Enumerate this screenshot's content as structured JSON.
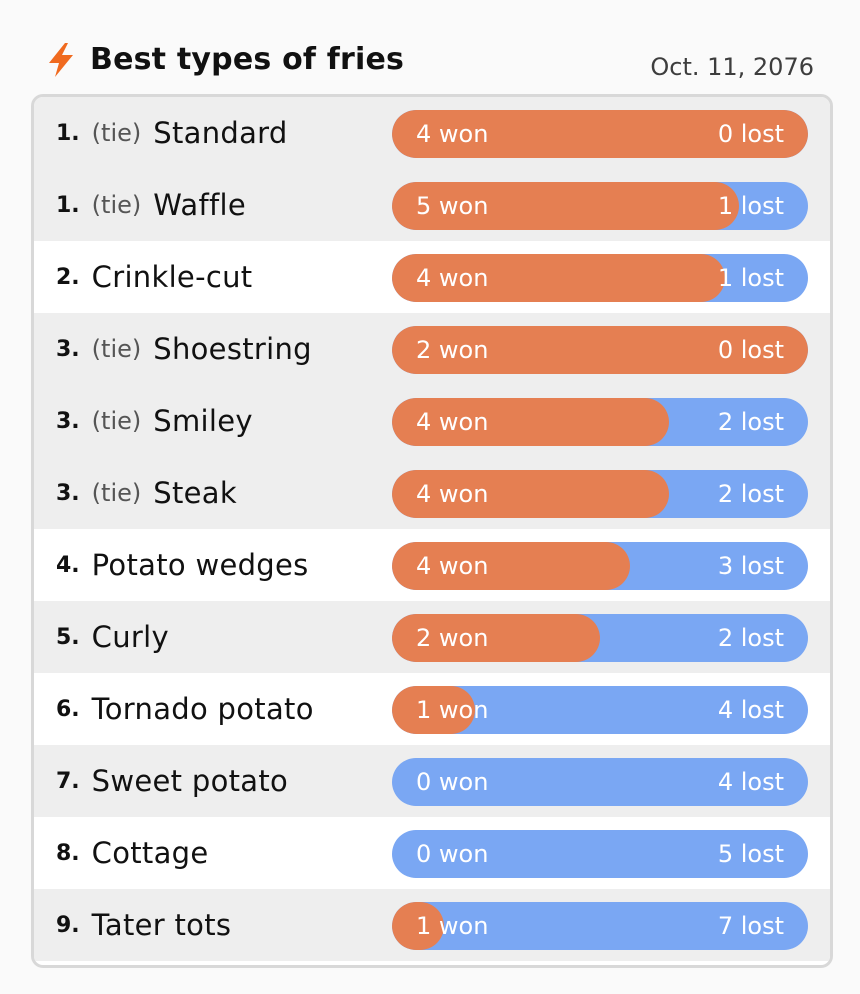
{
  "header": {
    "icon": "lightning-bolt-icon",
    "icon_color": "#f06a1f",
    "title": "Best types of fries",
    "date": "Oct. 11, 2076"
  },
  "colors": {
    "won": "#e57f52",
    "lost": "#7aa7f3",
    "row_shade": "#eeeeee",
    "row_plain": "#ffffff"
  },
  "rows": [
    {
      "rank": "1.",
      "tie": "(tie)",
      "name": "Standard",
      "won": 4,
      "lost": 0,
      "won_label": "4 won",
      "lost_label": "0 lost",
      "shaded": true
    },
    {
      "rank": "1.",
      "tie": "(tie)",
      "name": "Waffle",
      "won": 5,
      "lost": 1,
      "won_label": "5 won",
      "lost_label": "1 lost",
      "shaded": true
    },
    {
      "rank": "2.",
      "tie": "",
      "name": "Crinkle-cut",
      "won": 4,
      "lost": 1,
      "won_label": "4 won",
      "lost_label": "1 lost",
      "shaded": false
    },
    {
      "rank": "3.",
      "tie": "(tie)",
      "name": "Shoestring",
      "won": 2,
      "lost": 0,
      "won_label": "2 won",
      "lost_label": "0 lost",
      "shaded": true
    },
    {
      "rank": "3.",
      "tie": "(tie)",
      "name": "Smiley",
      "won": 4,
      "lost": 2,
      "won_label": "4 won",
      "lost_label": "2 lost",
      "shaded": true
    },
    {
      "rank": "3.",
      "tie": "(tie)",
      "name": "Steak",
      "won": 4,
      "lost": 2,
      "won_label": "4 won",
      "lost_label": "2 lost",
      "shaded": true
    },
    {
      "rank": "4.",
      "tie": "",
      "name": "Potato wedges",
      "won": 4,
      "lost": 3,
      "won_label": "4 won",
      "lost_label": "3 lost",
      "shaded": false
    },
    {
      "rank": "5.",
      "tie": "",
      "name": "Curly",
      "won": 2,
      "lost": 2,
      "won_label": "2 won",
      "lost_label": "2 lost",
      "shaded": true
    },
    {
      "rank": "6.",
      "tie": "",
      "name": "Tornado potato",
      "won": 1,
      "lost": 4,
      "won_label": "1 won",
      "lost_label": "4 lost",
      "shaded": false
    },
    {
      "rank": "7.",
      "tie": "",
      "name": "Sweet potato",
      "won": 0,
      "lost": 4,
      "won_label": "0 won",
      "lost_label": "4 lost",
      "shaded": true
    },
    {
      "rank": "8.",
      "tie": "",
      "name": "Cottage",
      "won": 0,
      "lost": 5,
      "won_label": "0 won",
      "lost_label": "5 lost",
      "shaded": false
    },
    {
      "rank": "9.",
      "tie": "",
      "name": "Tater tots",
      "won": 1,
      "lost": 7,
      "won_label": "1 won",
      "lost_label": "7 lost",
      "shaded": true
    }
  ]
}
